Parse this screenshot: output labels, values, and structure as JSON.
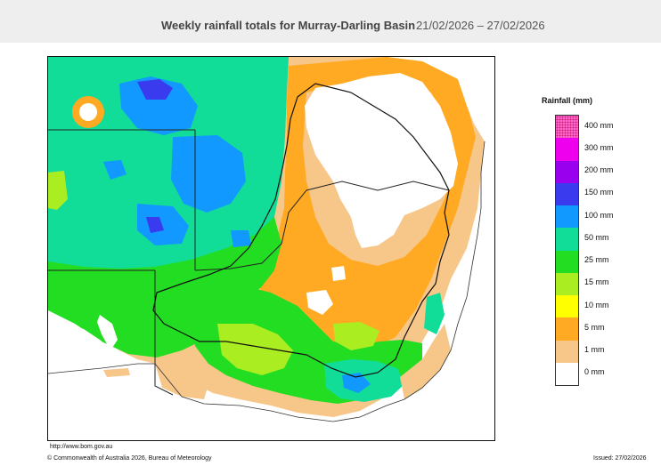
{
  "header": {
    "title": "Weekly rainfall totals for Murray-Darling Basin",
    "dates": "21/02/2026 – 27/02/2026"
  },
  "legend": {
    "title": "Rainfall (mm)",
    "items": [
      {
        "label": "400 mm",
        "color": "#ff66cc"
      },
      {
        "label": "300 mm",
        "color": "#ee00ee"
      },
      {
        "label": "200 mm",
        "color": "#9900ee"
      },
      {
        "label": "150 mm",
        "color": "#3a3aee"
      },
      {
        "label": "100 mm",
        "color": "#1199ff"
      },
      {
        "label": "50 mm",
        "color": "#11dd99"
      },
      {
        "label": "25 mm",
        "color": "#22dd22"
      },
      {
        "label": "15 mm",
        "color": "#aaee22"
      },
      {
        "label": "10 mm",
        "color": "#ffff00"
      },
      {
        "label": "5 mm",
        "color": "#ffaa22"
      },
      {
        "label": "1 mm",
        "color": "#f7c78a"
      },
      {
        "label": "0 mm",
        "color": "#ffffff"
      }
    ]
  },
  "footer": {
    "url": "http://www.bom.gov.au",
    "copyright": "© Commonwealth of Australia 2026, Bureau of Meteorology",
    "issued": "Issued: 27/02/2026"
  }
}
